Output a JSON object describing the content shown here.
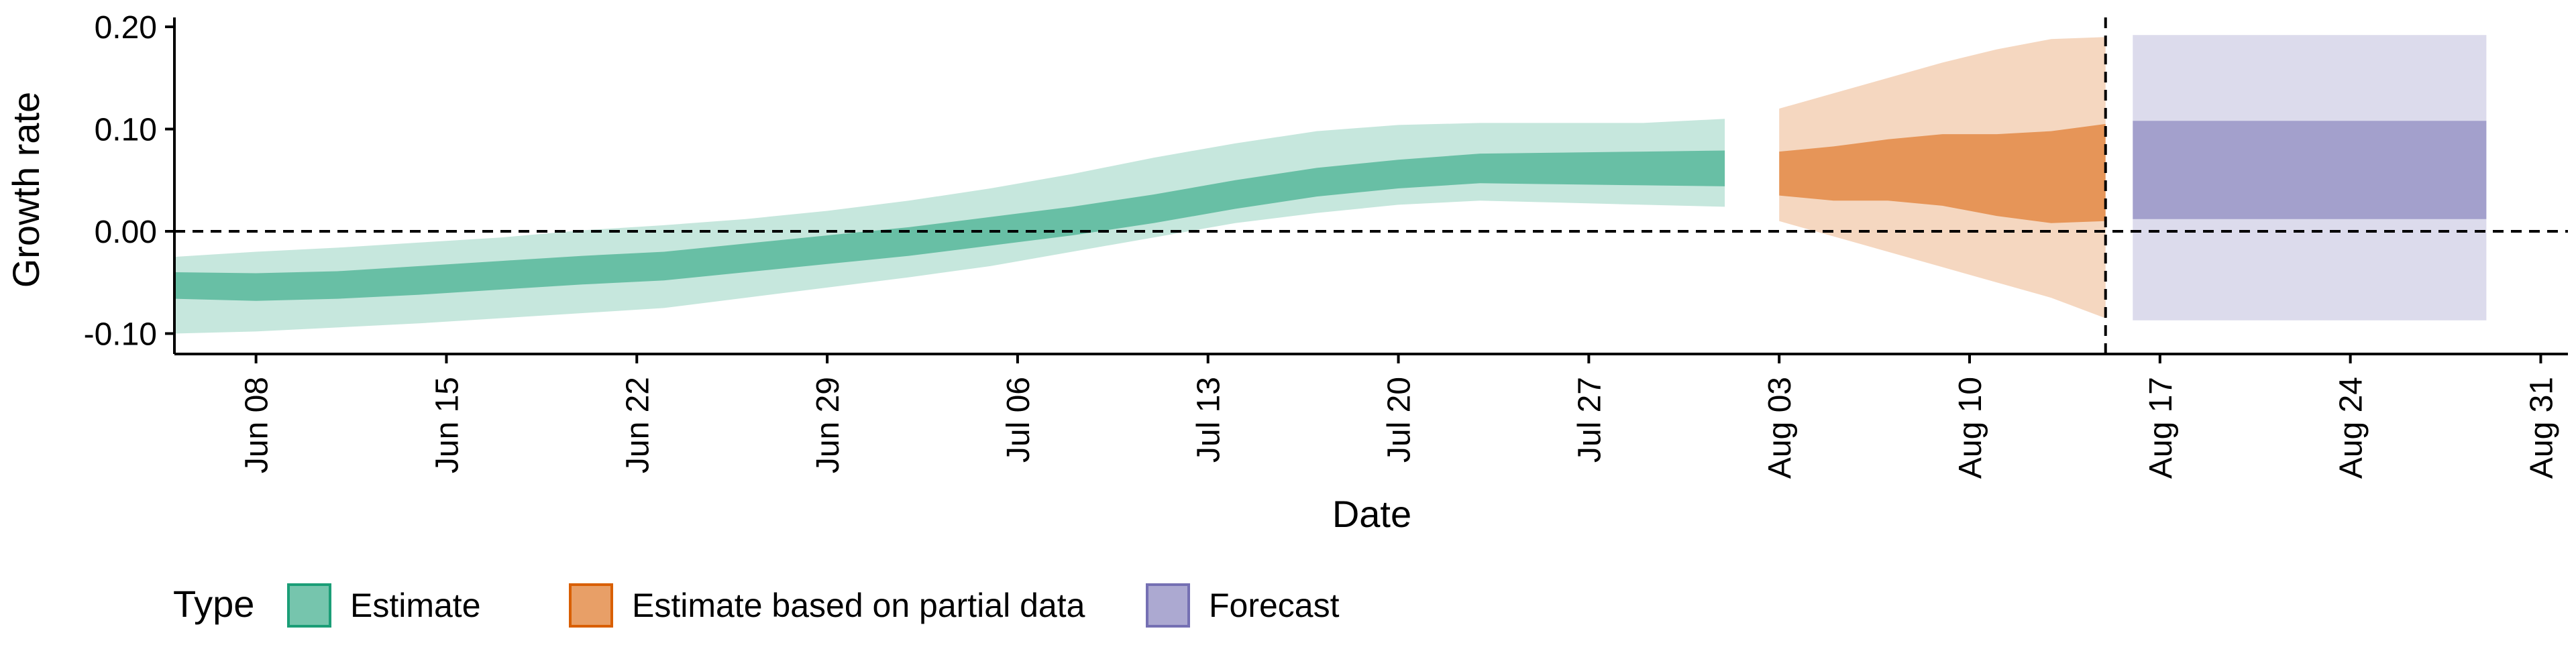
{
  "chart_data": {
    "type": "area",
    "xlabel": "Date",
    "ylabel": "Growth rate",
    "ylim": [
      -0.12,
      0.2
    ],
    "xlim": [
      "2020-06-05",
      "2020-09-01"
    ],
    "y_ticks": [
      -0.1,
      0.0,
      0.1,
      0.2
    ],
    "y_tick_labels": [
      "-0.10",
      "0.00",
      "0.10",
      "0.20"
    ],
    "x_ticks": [
      "2020-06-08",
      "2020-06-15",
      "2020-06-22",
      "2020-06-29",
      "2020-07-06",
      "2020-07-13",
      "2020-07-20",
      "2020-07-27",
      "2020-08-03",
      "2020-08-10",
      "2020-08-17",
      "2020-08-24",
      "2020-08-31"
    ],
    "x_tick_labels": [
      "Jun 08",
      "Jun 15",
      "Jun 22",
      "Jun 29",
      "Jul 06",
      "Jul 13",
      "Jul 20",
      "Jul 27",
      "Aug 03",
      "Aug 10",
      "Aug 17",
      "Aug 24",
      "Aug 31"
    ],
    "reference_lines": [
      {
        "axis": "y",
        "value": 0.0,
        "style": "dashed"
      },
      {
        "axis": "x",
        "value": "2020-08-15",
        "style": "dashed"
      }
    ],
    "grid": false,
    "legend": {
      "title": "Type",
      "position": "bottom",
      "entries": [
        {
          "label": "Estimate",
          "color": "#1b9e77"
        },
        {
          "label": "Estimate based on partial data",
          "color": "#d95f02"
        },
        {
          "label": "Forecast",
          "color": "#7570b3"
        }
      ]
    },
    "series": [
      {
        "name": "Estimate",
        "color": "#1b9e77",
        "x": [
          "2020-06-05",
          "2020-06-08",
          "2020-06-11",
          "2020-06-14",
          "2020-06-17",
          "2020-06-20",
          "2020-06-23",
          "2020-06-26",
          "2020-06-29",
          "2020-07-02",
          "2020-07-05",
          "2020-07-08",
          "2020-07-11",
          "2020-07-14",
          "2020-07-17",
          "2020-07-20",
          "2020-07-23",
          "2020-07-26",
          "2020-07-29",
          "2020-08-01"
        ],
        "median": [
          -0.052,
          -0.054,
          -0.052,
          -0.048,
          -0.043,
          -0.038,
          -0.034,
          -0.026,
          -0.018,
          -0.01,
          0.0,
          0.01,
          0.022,
          0.036,
          0.048,
          0.056,
          0.062,
          0.062,
          0.062,
          0.062
        ],
        "ci_inner": [
          [
            -0.066,
            -0.04
          ],
          [
            -0.068,
            -0.041
          ],
          [
            -0.066,
            -0.039
          ],
          [
            -0.062,
            -0.034
          ],
          [
            -0.057,
            -0.029
          ],
          [
            -0.052,
            -0.024
          ],
          [
            -0.048,
            -0.02
          ],
          [
            -0.04,
            -0.012
          ],
          [
            -0.032,
            -0.004
          ],
          [
            -0.024,
            0.004
          ],
          [
            -0.014,
            0.014
          ],
          [
            -0.004,
            0.024
          ],
          [
            0.008,
            0.036
          ],
          [
            0.022,
            0.05
          ],
          [
            0.034,
            0.062
          ],
          [
            0.042,
            0.07
          ],
          [
            0.047,
            0.076
          ],
          [
            0.046,
            0.077
          ],
          [
            0.045,
            0.078
          ],
          [
            0.044,
            0.079
          ]
        ],
        "ci_outer": [
          [
            -0.1,
            -0.025
          ],
          [
            -0.098,
            -0.02
          ],
          [
            -0.094,
            -0.016
          ],
          [
            -0.09,
            -0.011
          ],
          [
            -0.085,
            -0.006
          ],
          [
            -0.08,
            0.001
          ],
          [
            -0.075,
            0.006
          ],
          [
            -0.065,
            0.012
          ],
          [
            -0.055,
            0.02
          ],
          [
            -0.045,
            0.03
          ],
          [
            -0.034,
            0.042
          ],
          [
            -0.02,
            0.056
          ],
          [
            -0.006,
            0.072
          ],
          [
            0.008,
            0.086
          ],
          [
            0.018,
            0.098
          ],
          [
            0.026,
            0.104
          ],
          [
            0.03,
            0.106
          ],
          [
            0.028,
            0.106
          ],
          [
            0.026,
            0.106
          ],
          [
            0.024,
            0.11
          ]
        ]
      },
      {
        "name": "Estimate based on partial data",
        "color": "#d95f02",
        "x": [
          "2020-08-03",
          "2020-08-05",
          "2020-08-07",
          "2020-08-09",
          "2020-08-11",
          "2020-08-13",
          "2020-08-15"
        ],
        "median": [
          0.055,
          0.058,
          0.06,
          0.06,
          0.055,
          0.05,
          0.055
        ],
        "ci_inner": [
          [
            0.035,
            0.078
          ],
          [
            0.03,
            0.083
          ],
          [
            0.03,
            0.09
          ],
          [
            0.025,
            0.095
          ],
          [
            0.015,
            0.095
          ],
          [
            0.008,
            0.098
          ],
          [
            0.01,
            0.105
          ]
        ],
        "ci_outer": [
          [
            0.01,
            0.12
          ],
          [
            -0.005,
            0.135
          ],
          [
            -0.02,
            0.15
          ],
          [
            -0.035,
            0.165
          ],
          [
            -0.05,
            0.178
          ],
          [
            -0.065,
            0.188
          ],
          [
            -0.085,
            0.19
          ]
        ]
      },
      {
        "name": "Forecast",
        "color": "#7570b3",
        "x": [
          "2020-08-16",
          "2020-08-29"
        ],
        "ci_inner": [
          [
            0.012,
            0.108
          ],
          [
            0.012,
            0.108
          ]
        ],
        "ci_outer": [
          [
            -0.087,
            0.192
          ],
          [
            -0.087,
            0.192
          ]
        ]
      }
    ]
  }
}
